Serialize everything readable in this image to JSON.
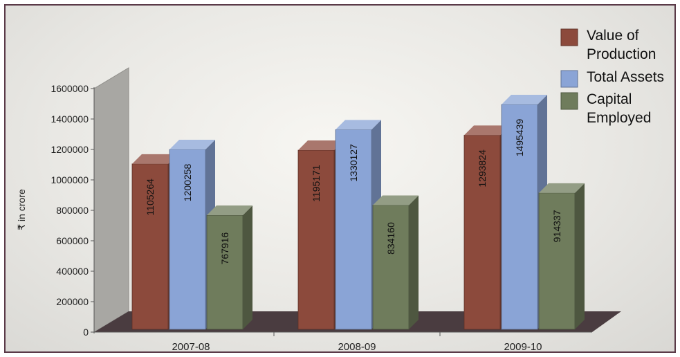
{
  "chart_data": {
    "type": "bar",
    "title": "",
    "xlabel": "",
    "ylabel": "₹ in crore",
    "categories": [
      "2007-08",
      "2008-09",
      "2009-10"
    ],
    "series": [
      {
        "name": "Value of Production",
        "values": [
          1105264,
          1195171,
          1293824
        ],
        "color": "#8c4a3c"
      },
      {
        "name": "Total Assets",
        "values": [
          1200258,
          1330127,
          1495439
        ],
        "color": "#8aa4d6"
      },
      {
        "name": "Capital Employed",
        "values": [
          767916,
          834160,
          914337
        ],
        "color": "#6f7c5c"
      }
    ],
    "yticks": [
      "0",
      "200000",
      "400000",
      "600000",
      "800000",
      "1000000",
      "1200000",
      "1400000",
      "1600000"
    ],
    "ylim": [
      0,
      1600000
    ],
    "legend": {
      "placement": "top-right",
      "entries": [
        {
          "lines": [
            "Value of",
            "Production"
          ]
        },
        {
          "lines": [
            "Total Assets"
          ]
        },
        {
          "lines": [
            "Capital",
            "Employed"
          ]
        }
      ]
    },
    "grid": false,
    "style": "3d-column"
  }
}
